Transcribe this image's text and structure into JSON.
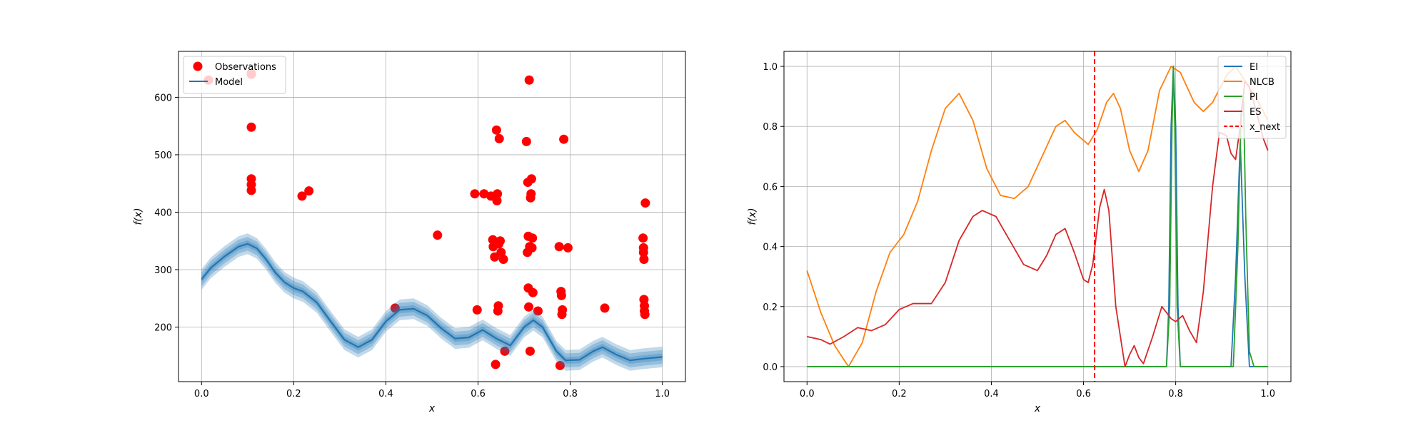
{
  "chart_data": [
    {
      "type": "scatter",
      "xlabel": "x",
      "ylabel": "f(x)",
      "xlim": [
        -0.05,
        1.05
      ],
      "ylim": [
        105,
        680
      ],
      "xticks": [
        "0.0",
        "0.2",
        "0.4",
        "0.6",
        "0.8",
        "1.0"
      ],
      "xtick_values": [
        0,
        0.2,
        0.4,
        0.6,
        0.8,
        1.0
      ],
      "yticks": [
        "200",
        "300",
        "400",
        "500",
        "600"
      ],
      "ytick_values": [
        200,
        300,
        400,
        500,
        600
      ],
      "grid": true,
      "legend_position": "top-left",
      "series": [
        {
          "name": "Observations",
          "kind": "scatter",
          "color": "#ff0000",
          "points": [
            [
              0.015,
              630
            ],
            [
              0.108,
              642
            ],
            [
              0.108,
              640
            ],
            [
              0.108,
              548
            ],
            [
              0.108,
              458
            ],
            [
              0.108,
              448
            ],
            [
              0.108,
              438
            ],
            [
              0.218,
              428
            ],
            [
              0.233,
              437
            ],
            [
              0.42,
              233
            ],
            [
              0.512,
              360
            ],
            [
              0.593,
              432
            ],
            [
              0.598,
              230
            ],
            [
              0.613,
              432
            ],
            [
              0.628,
              428
            ],
            [
              0.632,
              352
            ],
            [
              0.633,
              340
            ],
            [
              0.636,
              322
            ],
            [
              0.638,
              135
            ],
            [
              0.64,
              543
            ],
            [
              0.641,
              420
            ],
            [
              0.642,
              432
            ],
            [
              0.643,
              228
            ],
            [
              0.644,
              237
            ],
            [
              0.645,
              345
            ],
            [
              0.646,
              528
            ],
            [
              0.648,
              350
            ],
            [
              0.65,
              330
            ],
            [
              0.655,
              318
            ],
            [
              0.658,
              158
            ],
            [
              0.705,
              523
            ],
            [
              0.707,
              330
            ],
            [
              0.708,
              452
            ],
            [
              0.709,
              268
            ],
            [
              0.709,
              358
            ],
            [
              0.71,
              235
            ],
            [
              0.711,
              630
            ],
            [
              0.712,
              340
            ],
            [
              0.713,
              158
            ],
            [
              0.714,
              425
            ],
            [
              0.715,
              432
            ],
            [
              0.716,
              458
            ],
            [
              0.717,
              338
            ],
            [
              0.718,
              355
            ],
            [
              0.719,
              260
            ],
            [
              0.73,
              228
            ],
            [
              0.776,
              340
            ],
            [
              0.778,
              133
            ],
            [
              0.78,
              262
            ],
            [
              0.781,
              255
            ],
            [
              0.782,
              222
            ],
            [
              0.783,
              230
            ],
            [
              0.786,
              527
            ],
            [
              0.795,
              338
            ],
            [
              0.875,
              233
            ],
            [
              0.958,
              355
            ],
            [
              0.959,
              338
            ],
            [
              0.959,
              330
            ],
            [
              0.96,
              318
            ],
            [
              0.96,
              248
            ],
            [
              0.961,
              237
            ],
            [
              0.961,
              228
            ],
            [
              0.962,
              222
            ],
            [
              0.963,
              416
            ]
          ]
        },
        {
          "name": "Model",
          "kind": "line_with_band",
          "color": "#1f77b4",
          "points": [
            [
              0.0,
              283
            ],
            [
              0.02,
              303
            ],
            [
              0.05,
              323
            ],
            [
              0.08,
              340
            ],
            [
              0.1,
              345
            ],
            [
              0.12,
              337
            ],
            [
              0.14,
              318
            ],
            [
              0.16,
              295
            ],
            [
              0.18,
              278
            ],
            [
              0.2,
              268
            ],
            [
              0.22,
              262
            ],
            [
              0.25,
              243
            ],
            [
              0.28,
              210
            ],
            [
              0.31,
              178
            ],
            [
              0.34,
              165
            ],
            [
              0.37,
              178
            ],
            [
              0.4,
              210
            ],
            [
              0.43,
              230
            ],
            [
              0.46,
              232
            ],
            [
              0.49,
              220
            ],
            [
              0.52,
              198
            ],
            [
              0.55,
              180
            ],
            [
              0.58,
              182
            ],
            [
              0.61,
              195
            ],
            [
              0.64,
              180
            ],
            [
              0.67,
              168
            ],
            [
              0.7,
              200
            ],
            [
              0.72,
              212
            ],
            [
              0.74,
              200
            ],
            [
              0.77,
              158
            ],
            [
              0.79,
              142
            ],
            [
              0.82,
              143
            ],
            [
              0.85,
              158
            ],
            [
              0.87,
              165
            ],
            [
              0.9,
              152
            ],
            [
              0.93,
              142
            ],
            [
              0.96,
              145
            ],
            [
              1.0,
              148
            ]
          ],
          "band_widths": [
            6,
            12,
            18
          ]
        }
      ]
    },
    {
      "type": "line",
      "xlabel": "x",
      "ylabel": "f(x)",
      "xlim": [
        -0.05,
        1.05
      ],
      "ylim": [
        -0.05,
        1.05
      ],
      "xticks": [
        "0.0",
        "0.2",
        "0.4",
        "0.6",
        "0.8",
        "1.0"
      ],
      "xtick_values": [
        0,
        0.2,
        0.4,
        0.6,
        0.8,
        1.0
      ],
      "yticks": [
        "0.0",
        "0.2",
        "0.4",
        "0.6",
        "0.8",
        "1.0"
      ],
      "ytick_values": [
        0,
        0.2,
        0.4,
        0.6,
        0.8,
        1.0
      ],
      "grid": true,
      "legend_position": "top-right",
      "series": [
        {
          "name": "EI",
          "color": "#1f77b4",
          "points": [
            [
              0.0,
              0.0
            ],
            [
              0.78,
              0.0
            ],
            [
              0.785,
              0.2
            ],
            [
              0.79,
              0.8
            ],
            [
              0.795,
              1.0
            ],
            [
              0.8,
              0.8
            ],
            [
              0.805,
              0.2
            ],
            [
              0.81,
              0.0
            ],
            [
              0.92,
              0.0
            ],
            [
              0.93,
              0.3
            ],
            [
              0.94,
              0.75
            ],
            [
              0.95,
              0.3
            ],
            [
              0.96,
              0.0
            ],
            [
              1.0,
              0.0
            ]
          ]
        },
        {
          "name": "NLCB",
          "color": "#ff7f0e",
          "points": [
            [
              0.0,
              0.32
            ],
            [
              0.03,
              0.18
            ],
            [
              0.06,
              0.07
            ],
            [
              0.09,
              0.0
            ],
            [
              0.12,
              0.08
            ],
            [
              0.15,
              0.25
            ],
            [
              0.18,
              0.38
            ],
            [
              0.21,
              0.44
            ],
            [
              0.24,
              0.55
            ],
            [
              0.27,
              0.72
            ],
            [
              0.3,
              0.86
            ],
            [
              0.33,
              0.91
            ],
            [
              0.36,
              0.82
            ],
            [
              0.39,
              0.66
            ],
            [
              0.42,
              0.57
            ],
            [
              0.45,
              0.56
            ],
            [
              0.48,
              0.6
            ],
            [
              0.51,
              0.7
            ],
            [
              0.54,
              0.8
            ],
            [
              0.56,
              0.82
            ],
            [
              0.58,
              0.78
            ],
            [
              0.61,
              0.74
            ],
            [
              0.63,
              0.79
            ],
            [
              0.65,
              0.88
            ],
            [
              0.665,
              0.91
            ],
            [
              0.68,
              0.86
            ],
            [
              0.7,
              0.72
            ],
            [
              0.72,
              0.65
            ],
            [
              0.74,
              0.72
            ],
            [
              0.765,
              0.92
            ],
            [
              0.79,
              1.0
            ],
            [
              0.81,
              0.98
            ],
            [
              0.84,
              0.88
            ],
            [
              0.86,
              0.85
            ],
            [
              0.88,
              0.88
            ],
            [
              0.91,
              0.97
            ],
            [
              0.93,
              1.0
            ],
            [
              0.96,
              0.93
            ],
            [
              0.98,
              0.88
            ],
            [
              1.0,
              0.82
            ]
          ]
        },
        {
          "name": "PI",
          "color": "#2ca02c",
          "points": [
            [
              0.0,
              0.0
            ],
            [
              0.78,
              0.0
            ],
            [
              0.787,
              0.2
            ],
            [
              0.792,
              0.8
            ],
            [
              0.795,
              1.0
            ],
            [
              0.798,
              0.8
            ],
            [
              0.803,
              0.2
            ],
            [
              0.81,
              0.0
            ],
            [
              0.925,
              0.0
            ],
            [
              0.935,
              0.4
            ],
            [
              0.942,
              0.85
            ],
            [
              0.947,
              0.9
            ],
            [
              0.952,
              0.5
            ],
            [
              0.96,
              0.05
            ],
            [
              0.97,
              0.0
            ],
            [
              1.0,
              0.0
            ]
          ]
        },
        {
          "name": "ES",
          "color": "#d62728",
          "points": [
            [
              0.0,
              0.1
            ],
            [
              0.03,
              0.09
            ],
            [
              0.05,
              0.075
            ],
            [
              0.08,
              0.1
            ],
            [
              0.11,
              0.13
            ],
            [
              0.14,
              0.12
            ],
            [
              0.17,
              0.14
            ],
            [
              0.2,
              0.19
            ],
            [
              0.23,
              0.21
            ],
            [
              0.27,
              0.21
            ],
            [
              0.3,
              0.28
            ],
            [
              0.33,
              0.42
            ],
            [
              0.36,
              0.5
            ],
            [
              0.38,
              0.52
            ],
            [
              0.41,
              0.5
            ],
            [
              0.44,
              0.42
            ],
            [
              0.47,
              0.34
            ],
            [
              0.5,
              0.32
            ],
            [
              0.52,
              0.37
            ],
            [
              0.54,
              0.44
            ],
            [
              0.56,
              0.46
            ],
            [
              0.58,
              0.38
            ],
            [
              0.6,
              0.29
            ],
            [
              0.61,
              0.28
            ],
            [
              0.62,
              0.34
            ],
            [
              0.635,
              0.53
            ],
            [
              0.645,
              0.59
            ],
            [
              0.655,
              0.52
            ],
            [
              0.67,
              0.2
            ],
            [
              0.69,
              0.0
            ],
            [
              0.7,
              0.04
            ],
            [
              0.71,
              0.07
            ],
            [
              0.72,
              0.03
            ],
            [
              0.73,
              0.01
            ],
            [
              0.75,
              0.1
            ],
            [
              0.77,
              0.2
            ],
            [
              0.79,
              0.16
            ],
            [
              0.8,
              0.15
            ],
            [
              0.815,
              0.17
            ],
            [
              0.83,
              0.12
            ],
            [
              0.845,
              0.08
            ],
            [
              0.86,
              0.25
            ],
            [
              0.88,
              0.6
            ],
            [
              0.895,
              0.78
            ],
            [
              0.91,
              0.77
            ],
            [
              0.92,
              0.71
            ],
            [
              0.93,
              0.69
            ],
            [
              0.94,
              0.8
            ],
            [
              0.95,
              0.95
            ],
            [
              0.96,
              0.93
            ],
            [
              0.975,
              0.85
            ],
            [
              0.99,
              0.76
            ],
            [
              1.0,
              0.72
            ]
          ]
        },
        {
          "name": "x_next",
          "color": "#ff0000",
          "kind": "vline",
          "x": 0.624
        }
      ]
    }
  ]
}
